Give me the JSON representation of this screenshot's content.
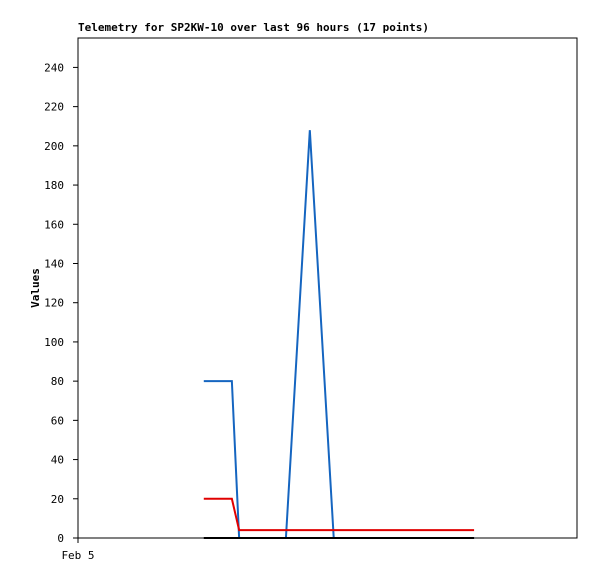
{
  "chart_data": {
    "type": "line",
    "title": "Telemetry for SP2KW-10 over last 96 hours (17 points)",
    "y_label": "Values",
    "x": [
      24.2,
      29.6,
      31,
      40,
      44.6,
      49.2,
      52.5,
      55.5,
      58.5,
      61.5,
      64.5,
      67.5,
      70,
      72,
      74,
      75,
      76.2
    ],
    "xlim": [
      0,
      96
    ],
    "xticks": [
      {
        "value": 0,
        "label": "Feb 5"
      }
    ],
    "ylim": [
      0,
      255
    ],
    "yticks": [
      0,
      20,
      40,
      60,
      80,
      100,
      120,
      140,
      160,
      180,
      200,
      220,
      240
    ],
    "series": [
      {
        "color": "#1565c0",
        "values": [
          80,
          80,
          0,
          0,
          208,
          0,
          0,
          0,
          0,
          0,
          0,
          0,
          0,
          0,
          0,
          0,
          0
        ]
      },
      {
        "color": "#e00000",
        "values": [
          20,
          20,
          4,
          4,
          4,
          4,
          4,
          4,
          4,
          4,
          4,
          4,
          4,
          4,
          4,
          4,
          4
        ]
      },
      {
        "color": "#000000",
        "values": [
          0,
          0,
          0,
          0,
          0,
          0,
          0,
          0,
          0,
          0,
          0,
          0,
          0,
          0,
          0,
          0,
          0
        ]
      }
    ]
  }
}
